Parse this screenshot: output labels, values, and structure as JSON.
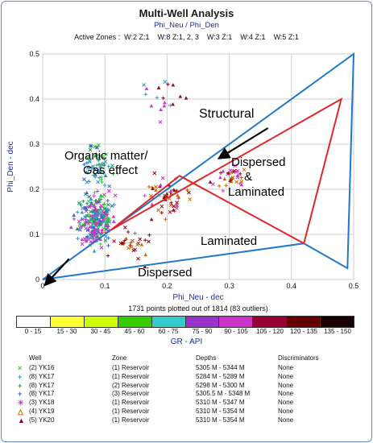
{
  "header": {
    "title": "Multi-Well Analysis",
    "subtitle": "Phi_Neu / Phi_Den",
    "zones_label": "Active Zones :",
    "zones": [
      "W:2 Z:1",
      "W:8 Z:1, 2, 3",
      "W:3 Z:1",
      "W:4 Z:1",
      "W:5 Z:1"
    ]
  },
  "chart_data": {
    "type": "scatter",
    "xlabel": "Phi_Neu - dec",
    "ylabel": "Phi_Den - dec",
    "xlim": [
      0,
      0.5
    ],
    "ylim": [
      0,
      0.5
    ],
    "x_ticks": [
      "0",
      "0.1",
      "0.2",
      "0.3",
      "0.4",
      "0.5"
    ],
    "y_ticks": [
      "0",
      "0.1",
      "0.2",
      "0.3",
      "0.4",
      "0.5"
    ],
    "grid": true,
    "annotations": [
      "Structural",
      "Dispersed",
      "&",
      "Laminated",
      "Organic matter/",
      "Gas effect",
      "Laminated",
      "Dispersed"
    ],
    "blue_polygon": [
      [
        0,
        0
      ],
      [
        0.5,
        0.5
      ],
      [
        0.49,
        0.025
      ],
      [
        0.42,
        0.08
      ],
      [
        0,
        0
      ]
    ],
    "red_polygon": [
      [
        0.11,
        0.11
      ],
      [
        0.48,
        0.4
      ],
      [
        0.42,
        0.08
      ],
      [
        0.22,
        0.23
      ],
      [
        0.11,
        0.11
      ]
    ],
    "arrows": [
      [
        [
          0.44,
          0.35
        ],
        [
          0.48,
          0.31
        ]
      ],
      [
        [
          0.12,
          0.06
        ],
        [
          0.2,
          0.03
        ]
      ]
    ],
    "points_note": "1731 points plotted out of 1814 (83 outliers)"
  },
  "colorbar": {
    "title": "GR - API",
    "bins": [
      {
        "label": "0 - 15",
        "color": "#ffffff"
      },
      {
        "label": "15 - 30",
        "color": "#ffff33"
      },
      {
        "label": "30 - 45",
        "color": "#ccff00"
      },
      {
        "label": "45 - 60",
        "color": "#33cc00"
      },
      {
        "label": "60 - 75",
        "color": "#33cccc"
      },
      {
        "label": "75 - 90",
        "color": "#9933cc"
      },
      {
        "label": "90 - 105",
        "color": "#cc33cc"
      },
      {
        "label": "105 - 120",
        "color": "#990033"
      },
      {
        "label": "120 - 135",
        "color": "#660000"
      },
      {
        "label": "135 - 150",
        "color": "#1a0000"
      }
    ]
  },
  "legend": {
    "headers": {
      "well": "Well",
      "zone": "Zone",
      "depths": "Depths",
      "disc": "Discriminators"
    },
    "rows": [
      {
        "symbol": "×",
        "symbol_color": "#33cc33",
        "well": "(2) YK16",
        "zone": "(1) Reservoir",
        "depths": "5305 M - 5344 M",
        "disc": "None"
      },
      {
        "symbol": "+",
        "symbol_color": "#3399cc",
        "well": "(8) YK17",
        "zone": "(1) Reservoir",
        "depths": "5284 M - 5289 M",
        "disc": "None"
      },
      {
        "symbol": "+",
        "symbol_color": "#1a9a5a",
        "well": "(8) YK17",
        "zone": "(2) Reservoir",
        "depths": "5298 M - 5300 M",
        "disc": "None"
      },
      {
        "symbol": "+",
        "symbol_color": "#3366cc",
        "well": "(8) YK17",
        "zone": "(3) Reservoir",
        "depths": "5305.5 M - 5348 M",
        "disc": "None"
      },
      {
        "symbol": "✳",
        "symbol_color": "#cc33cc",
        "well": "(3) YK18",
        "zone": "(1) Reservoir",
        "depths": "5310 M - 5347 M",
        "disc": "None"
      },
      {
        "symbol": "△",
        "symbol_color": "#cc6600",
        "well": "(4) YK19",
        "zone": "(1) Reservoir",
        "depths": "5310 M - 5354 M",
        "disc": "None"
      },
      {
        "symbol": "▲",
        "symbol_color": "#8a0a1a",
        "well": "(5) YK20",
        "zone": "(1) Reservoir",
        "depths": "5310 M - 5354 M",
        "disc": "None"
      }
    ]
  }
}
